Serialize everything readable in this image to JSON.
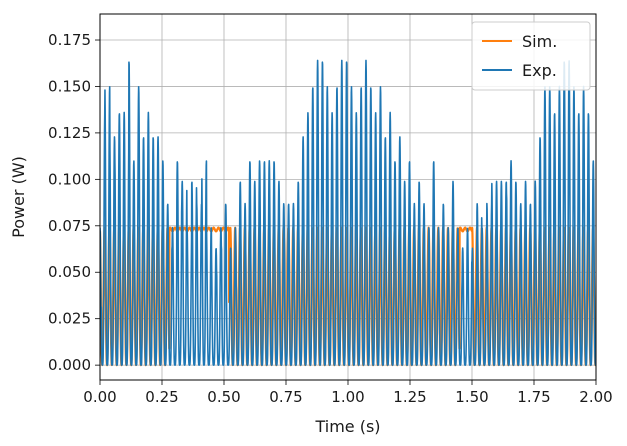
{
  "chart_data": {
    "type": "line",
    "title": "",
    "xlabel": "Time (s)",
    "ylabel": "Power (W)",
    "xlim": [
      0.0,
      2.0
    ],
    "ylim": [
      -0.008,
      0.189
    ],
    "grid": true,
    "legend_position": "top-right",
    "x_ticks": [
      "0.00",
      "0.25",
      "0.50",
      "0.75",
      "1.00",
      "1.25",
      "1.50",
      "1.75",
      "2.00"
    ],
    "y_ticks": [
      "0.000",
      "0.025",
      "0.050",
      "0.075",
      "0.100",
      "0.125",
      "0.150",
      "0.175"
    ],
    "series": [
      {
        "name": "Sim.",
        "color": "#ff7f0e",
        "description_values": {
          "oscillation_period_s": 0.0195,
          "min": 0.0,
          "max": 0.074,
          "plateau_intervals_s": [
            [
              0.28,
              0.52
            ],
            [
              1.45,
              1.5
            ]
          ]
        }
      },
      {
        "name": "Exp.",
        "color": "#1f77b4",
        "oscillation_period_s": 0.0195,
        "peaks": [
          [
            0.0,
            0.074
          ],
          [
            0.01,
            0.136
          ],
          [
            0.03,
            0.15
          ],
          [
            0.05,
            0.123
          ],
          [
            0.07,
            0.136
          ],
          [
            0.09,
            0.136
          ],
          [
            0.11,
            0.123
          ],
          [
            0.123,
            0.164
          ],
          [
            0.14,
            0.11
          ],
          [
            0.16,
            0.15
          ],
          [
            0.18,
            0.123
          ],
          [
            0.2,
            0.136
          ],
          [
            0.22,
            0.123
          ],
          [
            0.24,
            0.123
          ],
          [
            0.26,
            0.11
          ],
          [
            0.28,
            0.087
          ],
          [
            0.3,
            0.074
          ],
          [
            0.32,
            0.11
          ],
          [
            0.34,
            0.099
          ],
          [
            0.36,
            0.074
          ],
          [
            0.38,
            0.099
          ],
          [
            0.4,
            0.087
          ],
          [
            0.42,
            0.11
          ],
          [
            0.44,
            0.074
          ],
          [
            0.46,
            0.063
          ],
          [
            0.48,
            0.074
          ],
          [
            0.5,
            0.087
          ],
          [
            0.52,
            0.063
          ],
          [
            0.54,
            0.074
          ],
          [
            0.56,
            0.099
          ],
          [
            0.58,
            0.087
          ],
          [
            0.6,
            0.11
          ],
          [
            0.62,
            0.099
          ],
          [
            0.64,
            0.11
          ],
          [
            0.66,
            0.11
          ],
          [
            0.68,
            0.11
          ],
          [
            0.7,
            0.11
          ],
          [
            0.72,
            0.099
          ],
          [
            0.74,
            0.087
          ],
          [
            0.76,
            0.087
          ],
          [
            0.78,
            0.087
          ],
          [
            0.8,
            0.099
          ],
          [
            0.82,
            0.123
          ],
          [
            0.84,
            0.136
          ],
          [
            0.86,
            0.15
          ],
          [
            0.875,
            0.164
          ],
          [
            0.89,
            0.164
          ],
          [
            0.91,
            0.15
          ],
          [
            0.93,
            0.136
          ],
          [
            0.95,
            0.15
          ],
          [
            0.97,
            0.164
          ],
          [
            0.99,
            0.164
          ],
          [
            1.01,
            0.15
          ],
          [
            1.03,
            0.136
          ],
          [
            1.05,
            0.15
          ],
          [
            1.07,
            0.164
          ],
          [
            1.09,
            0.15
          ],
          [
            1.11,
            0.136
          ],
          [
            1.13,
            0.15
          ],
          [
            1.15,
            0.123
          ],
          [
            1.17,
            0.136
          ],
          [
            1.19,
            0.11
          ],
          [
            1.21,
            0.123
          ],
          [
            1.23,
            0.099
          ],
          [
            1.25,
            0.11
          ],
          [
            1.27,
            0.087
          ],
          [
            1.29,
            0.099
          ],
          [
            1.31,
            0.087
          ],
          [
            1.33,
            0.074
          ],
          [
            1.35,
            0.11
          ],
          [
            1.37,
            0.074
          ],
          [
            1.39,
            0.087
          ],
          [
            1.41,
            0.074
          ],
          [
            1.43,
            0.099
          ],
          [
            1.45,
            0.074
          ],
          [
            1.47,
            0.063
          ],
          [
            1.49,
            0.074
          ],
          [
            1.51,
            0.063
          ],
          [
            1.53,
            0.087
          ],
          [
            1.55,
            0.074
          ],
          [
            1.57,
            0.087
          ],
          [
            1.59,
            0.099
          ],
          [
            1.61,
            0.099
          ],
          [
            1.63,
            0.099
          ],
          [
            1.65,
            0.11
          ],
          [
            1.67,
            0.099
          ],
          [
            1.69,
            0.087
          ],
          [
            1.71,
            0.099
          ],
          [
            1.73,
            0.087
          ],
          [
            1.75,
            0.099
          ],
          [
            1.77,
            0.123
          ],
          [
            1.79,
            0.15
          ],
          [
            1.81,
            0.15
          ],
          [
            1.83,
            0.136
          ],
          [
            1.85,
            0.15
          ],
          [
            1.87,
            0.164
          ],
          [
            1.89,
            0.164
          ],
          [
            1.91,
            0.15
          ],
          [
            1.93,
            0.136
          ],
          [
            1.95,
            0.15
          ],
          [
            1.97,
            0.136
          ],
          [
            1.99,
            0.11
          ]
        ]
      }
    ]
  }
}
